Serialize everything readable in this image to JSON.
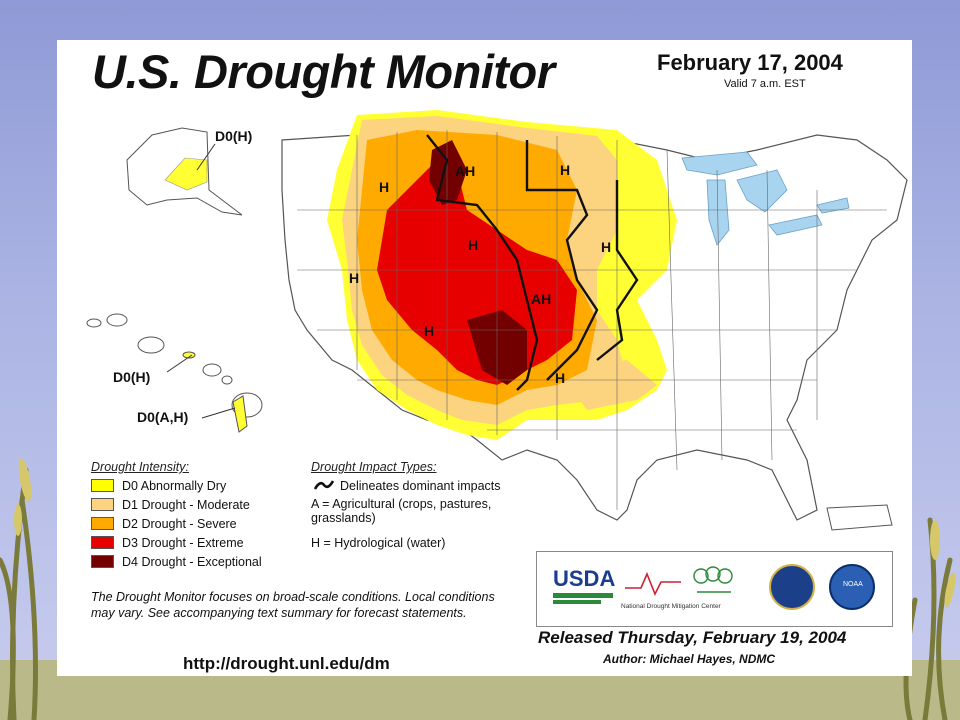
{
  "header": {
    "title": "U.S. Drought Monitor",
    "date": "February 17, 2004",
    "valid": "Valid 7 a.m. EST"
  },
  "map_labels": {
    "alaska": "D0(H)",
    "hawaii_north": "D0(H)",
    "hawaii_big": "D0(A,H)",
    "h1": "H",
    "ah1": "AH",
    "h2": "H",
    "h3": "H",
    "h4": "H",
    "h5": "H",
    "ah2": "AH",
    "h6": "H",
    "h7": "H"
  },
  "legend": {
    "intensity_title": "Drought Intensity:",
    "items": [
      {
        "label": "D0 Abnormally Dry",
        "color": "#ffff00"
      },
      {
        "label": "D1 Drought - Moderate",
        "color": "#fcd37f"
      },
      {
        "label": "D2 Drought - Severe",
        "color": "#ffaa00"
      },
      {
        "label": "D3 Drought - Extreme",
        "color": "#e60000"
      },
      {
        "label": "D4 Drought - Exceptional",
        "color": "#730000"
      }
    ],
    "impact_title": "Drought Impact Types:",
    "impact_line": "Delineates dominant impacts",
    "impact_a": "A = Agricultural (crops, pastures,",
    "impact_a2": "grasslands)",
    "impact_h": "H = Hydrological (water)"
  },
  "note": "The Drought Monitor focuses on broad-scale conditions. Local conditions may vary. See accompanying text summary for forecast statements.",
  "url": "http://drought.unl.edu/dm",
  "logos": {
    "usda": "USDA",
    "ndmc": "National Drought Mitigation Center",
    "noaa": "NOAA"
  },
  "footer": {
    "released": "Released Thursday, February 19, 2004",
    "author": "Author: Michael Hayes, NDMC"
  },
  "colors": {
    "background": "#9ca5dd",
    "water": "#a9d4f0",
    "land": "#ffffff"
  }
}
